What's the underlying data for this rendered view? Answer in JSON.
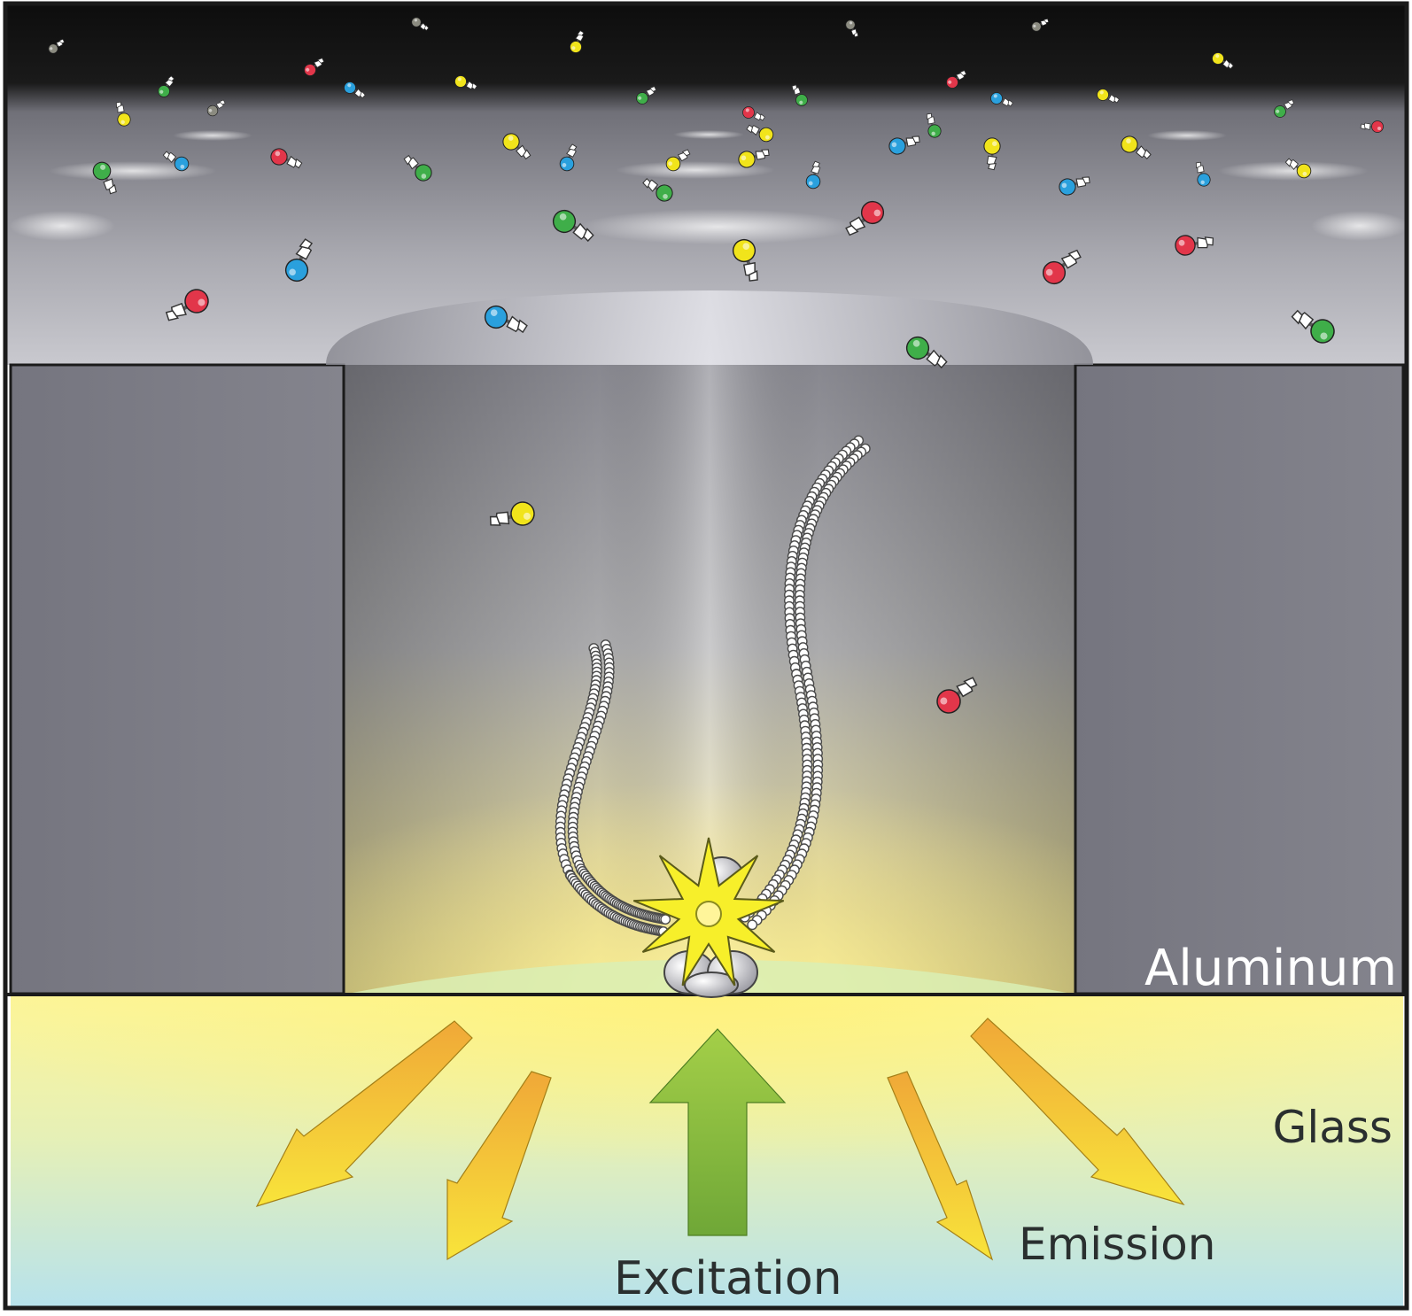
{
  "labels": {
    "aluminum": "Aluminum",
    "glass": "Glass",
    "emission": "Emission",
    "excitation": "Excitation"
  },
  "colors": {
    "outline": "#1b1b1b",
    "solution_dark": "#0f0f0f",
    "aluminum": "#7b7b85",
    "glass_top": "#fff9a6",
    "glass_bottom": "#b9e4ee",
    "emission_arrow": "#f4cc2c",
    "excitation_arrow": "#7fb23a",
    "nucleotide_red": "#e2364a",
    "nucleotide_green": "#3fae49",
    "nucleotide_blue": "#2aa0dd",
    "nucleotide_yellow": "#f1e41b",
    "polymerase_star": "#f7ef2a"
  },
  "icons": {
    "fluorophore": "starburst-icon",
    "polymerase": "polymerase-blob",
    "dna": "dna-bead-chain"
  }
}
